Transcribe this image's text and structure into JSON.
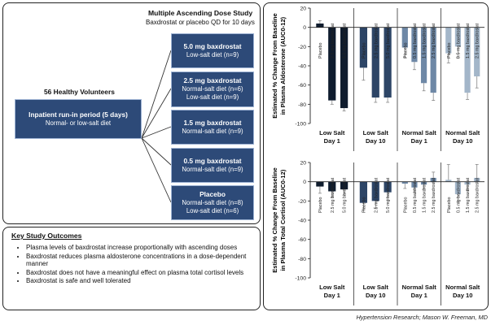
{
  "design": {
    "title": "Multiple Ascending Dose Study",
    "subtitle": "Baxdrostat or placebo QD for 10 days",
    "volunteers": "56 Healthy Volunteers",
    "runin": {
      "title": "Inpatient run-in period (5 days)",
      "line": "Normal- or low-salt diet"
    },
    "arms": [
      {
        "dose": "5.0 mg baxdrostat",
        "lines": [
          "Low-salt diet (n=9)"
        ]
      },
      {
        "dose": "2.5 mg baxdrostat",
        "lines": [
          "Normal-salt diet (n=6)",
          "Low-salt diet (n=9)"
        ]
      },
      {
        "dose": "1.5 mg baxdrostat",
        "lines": [
          "Normal-salt diet (n=9)"
        ]
      },
      {
        "dose": "0.5 mg baxdrostat",
        "lines": [
          "Normal-salt diet (n=9)"
        ]
      },
      {
        "dose": "Placebo",
        "lines": [
          "Normal-salt diet (n=8)",
          "Low-salt diet (n=6)"
        ]
      }
    ]
  },
  "outcomes": {
    "title": "Key Study Outcomes",
    "items": [
      "Plasma levels of baxdrostat increase proportionally with ascending doses",
      "Baxdrostat reduces plasma aldosterone concentrations in a dose-dependent manner",
      "Baxdrostat does not have a meaningful effect on plasma total cortisol levels",
      "Baxdrostat is safe and well tolerated"
    ]
  },
  "credit": "Hypertension Research; Mason W. Freeman, MD",
  "colors": {
    "box_fill": "#2d4a78",
    "low_salt_day1": "#0f1c2e",
    "low_salt_day10": "#2d4566",
    "normal_salt_day1": "#6e88a6",
    "normal_salt_day10": "#a3b6c9"
  },
  "chart_data": [
    {
      "type": "bar",
      "ylabel_lines": [
        "Estimated % Change From Baseline",
        "in Plasma Aldosterone (AUC0-12)"
      ],
      "ylim": [
        -100,
        20
      ],
      "yticks": [
        20,
        0,
        -20,
        -40,
        -60,
        -80,
        -100
      ],
      "groups": [
        {
          "label_lines": [
            "Low Salt",
            "Day 1"
          ],
          "color": "#0f1c2e",
          "bars": [
            {
              "label": "Placebo",
              "value": 4,
              "err": 3
            },
            {
              "label": "2.5 mg baxdrostat",
              "value": -76,
              "err": 4
            },
            {
              "label": "5.0 mg baxdrostat",
              "value": -84,
              "err": 3
            }
          ]
        },
        {
          "label_lines": [
            "Low Salt",
            "Day 10"
          ],
          "color": "#2d4566",
          "bars": [
            {
              "label": "Placebo",
              "value": -42,
              "err": 13
            },
            {
              "label": "2.5 mg baxdrostat",
              "value": -73,
              "err": 5
            },
            {
              "label": "5.0 mg baxdrostat",
              "value": -73,
              "err": 5
            }
          ]
        },
        {
          "label_lines": [
            "Normal Salt",
            "Day 1"
          ],
          "color": "#6e88a6",
          "bars": [
            {
              "label": "Placebo",
              "value": -21,
              "err": 10
            },
            {
              "label": "0.5 mg baxdrostat",
              "value": -36,
              "err": 8
            },
            {
              "label": "1.5 mg baxdrostat",
              "value": -58,
              "err": 8
            },
            {
              "label": "2.5 mg baxdrostat",
              "value": -68,
              "err": 8
            }
          ]
        },
        {
          "label_lines": [
            "Normal Salt",
            "Day 10"
          ],
          "color": "#a3b6c9",
          "bars": [
            {
              "label": "Placebo",
              "value": -27,
              "err": 10
            },
            {
              "label": "0.5 mg baxdrostat",
              "value": -20,
              "err": 12
            },
            {
              "label": "1.5 mg baxdrostat",
              "value": -68,
              "err": 7
            },
            {
              "label": "2.5 mg baxdrostat",
              "value": -51,
              "err": 12
            }
          ]
        }
      ]
    },
    {
      "type": "bar",
      "ylabel_lines": [
        "Estimated % Change From Baseline",
        "in Plasma Total Cortisol (AUC0-12)"
      ],
      "ylim": [
        -100,
        20
      ],
      "yticks": [
        20,
        0,
        -20,
        -40,
        -60,
        -80,
        -100
      ],
      "groups": [
        {
          "label_lines": [
            "Low Salt",
            "Day 1"
          ],
          "color": "#0f1c2e",
          "bars": [
            {
              "label": "Placebo",
              "value": -5,
              "err": 7
            },
            {
              "label": "2.5 mg baxdrostat",
              "value": -10,
              "err": 6
            },
            {
              "label": "5.0 mg baxdrostat",
              "value": -8,
              "err": 6
            }
          ]
        },
        {
          "label_lines": [
            "Low Salt",
            "Day 10"
          ],
          "color": "#2d4566",
          "bars": [
            {
              "label": "Placebo",
              "value": -22,
              "err": 8
            },
            {
              "label": "2.5 mg baxdrostat",
              "value": -20,
              "err": 8
            },
            {
              "label": "5.0 mg baxdrostat",
              "value": -11,
              "err": 8
            }
          ]
        },
        {
          "label_lines": [
            "Normal Salt",
            "Day 1"
          ],
          "color": "#6e88a6",
          "bars": [
            {
              "label": "Placebo",
              "value": -2,
              "err": 5
            },
            {
              "label": "0.5 mg baxdrostat",
              "value": -6,
              "err": 5
            },
            {
              "label": "1.5 mg baxdrostat",
              "value": -3,
              "err": 5
            },
            {
              "label": "2.5 mg baxdrostat",
              "value": 4,
              "err": 6
            }
          ]
        },
        {
          "label_lines": [
            "Normal Salt",
            "Day 10"
          ],
          "color": "#a3b6c9",
          "bars": [
            {
              "label": "Placebo",
              "value": 2,
              "err": 16
            },
            {
              "label": "0.5 mg baxdrostat",
              "value": -13,
              "err": 8
            },
            {
              "label": "1.5 mg baxdrostat",
              "value": -3,
              "err": 6
            },
            {
              "label": "2.5 mg baxdrostat",
              "value": 4,
              "err": 14
            }
          ]
        }
      ]
    }
  ]
}
